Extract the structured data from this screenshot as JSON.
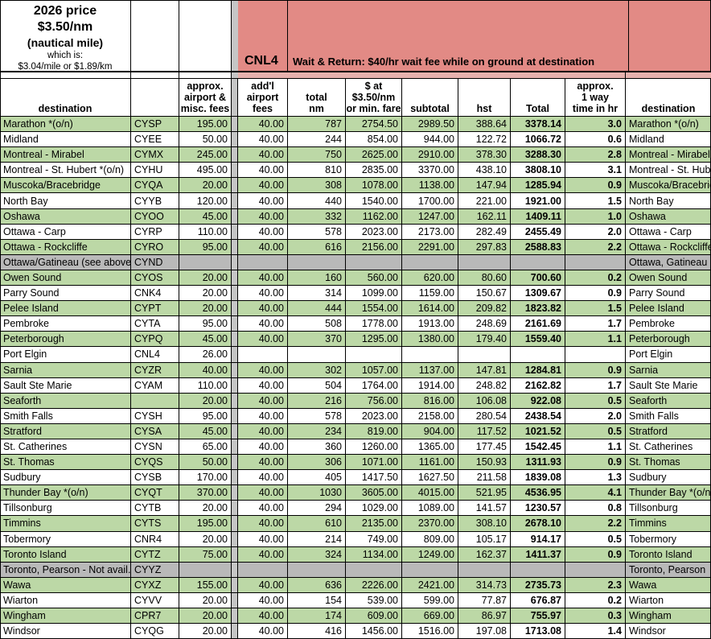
{
  "top": {
    "price_title": "2026 price",
    "price_rate": "$3.50/nm",
    "price_unit": "(nautical mile)",
    "which_is": "which is:",
    "conversion": "$3.04/mile or $1.89/km",
    "cnl4_code": "CNL4",
    "wait_note": "Wait & Return: $40/hr wait fee while on ground at destination"
  },
  "colors": {
    "row_green": "#bcd8a6",
    "row_gray": "#b9b9b9",
    "banner_pink": "#e28a85",
    "separator_gray": "#c6c6c6",
    "spacer_pink": "#e7b2ae"
  },
  "header": {
    "destination": "destination",
    "code": "",
    "fees": "approx.\nairport &\nmisc. fees",
    "addl": "add'l\nairport\nfees",
    "nm": "total\nnm",
    "fare": "$ at\n$3.50/nm\nor min. fare",
    "subtotal": "subtotal",
    "hst": "hst",
    "total": "Total",
    "time": "approx.\n1 way\ntime in hr",
    "destination_right": "destination"
  },
  "table": {
    "rows": [
      {
        "dest": "Marathon *(o/n)",
        "code": "CYSP",
        "fees": "195.00",
        "addl": "40.00",
        "nm": "787",
        "fare": "2754.50",
        "subtotal": "2989.50",
        "hst": "388.64",
        "total": "3378.14",
        "time": "3.0",
        "dest2": "Marathon *(o/n)",
        "shade": "green"
      },
      {
        "dest": "Midland",
        "code": "CYEE",
        "fees": "50.00",
        "addl": "40.00",
        "nm": "244",
        "fare": "854.00",
        "subtotal": "944.00",
        "hst": "122.72",
        "total": "1066.72",
        "time": "0.6",
        "dest2": "Midland",
        "shade": "white"
      },
      {
        "dest": "Montreal - Mirabel",
        "code": "CYMX",
        "fees": "245.00",
        "addl": "40.00",
        "nm": "750",
        "fare": "2625.00",
        "subtotal": "2910.00",
        "hst": "378.30",
        "total": "3288.30",
        "time": "2.8",
        "dest2": "Montreal - Mirabel",
        "shade": "green"
      },
      {
        "dest": "Montreal - St. Hubert *(o/n)",
        "code": "CYHU",
        "fees": "495.00",
        "addl": "40.00",
        "nm": "810",
        "fare": "2835.00",
        "subtotal": "3370.00",
        "hst": "438.10",
        "total": "3808.10",
        "time": "3.1",
        "dest2": "Montreal - St. Hubert *(o/n)",
        "shade": "white"
      },
      {
        "dest": "Muscoka/Bracebridge",
        "code": "CYQA",
        "fees": "20.00",
        "addl": "40.00",
        "nm": "308",
        "fare": "1078.00",
        "subtotal": "1138.00",
        "hst": "147.94",
        "total": "1285.94",
        "time": "0.9",
        "dest2": "Muscoka/Bracebridge",
        "shade": "green"
      },
      {
        "dest": "North Bay",
        "code": "CYYB",
        "fees": "120.00",
        "addl": "40.00",
        "nm": "440",
        "fare": "1540.00",
        "subtotal": "1700.00",
        "hst": "221.00",
        "total": "1921.00",
        "time": "1.5",
        "dest2": "North Bay",
        "shade": "white"
      },
      {
        "dest": "Oshawa",
        "code": "CYOO",
        "fees": "45.00",
        "addl": "40.00",
        "nm": "332",
        "fare": "1162.00",
        "subtotal": "1247.00",
        "hst": "162.11",
        "total": "1409.11",
        "time": "1.0",
        "dest2": "Oshawa",
        "shade": "green"
      },
      {
        "dest": "Ottawa - Carp",
        "code": "CYRP",
        "fees": "110.00",
        "addl": "40.00",
        "nm": "578",
        "fare": "2023.00",
        "subtotal": "2173.00",
        "hst": "282.49",
        "total": "2455.49",
        "time": "2.0",
        "dest2": "Ottawa - Carp",
        "shade": "white"
      },
      {
        "dest": "Ottawa - Rockcliffe",
        "code": "CYRO",
        "fees": "95.00",
        "addl": "40.00",
        "nm": "616",
        "fare": "2156.00",
        "subtotal": "2291.00",
        "hst": "297.83",
        "total": "2588.83",
        "time": "2.2",
        "dest2": "Ottawa - Rockcliffe",
        "shade": "green"
      },
      {
        "dest": "Ottawa/Gatineau (see above)",
        "code": "CYND",
        "fees": "",
        "addl": "",
        "nm": "",
        "fare": "",
        "subtotal": "",
        "hst": "",
        "total": "",
        "time": "",
        "dest2": "Ottawa, Gatineau",
        "shade": "gray"
      },
      {
        "dest": "Owen Sound",
        "code": "CYOS",
        "fees": "20.00",
        "addl": "40.00",
        "nm": "160",
        "fare": "560.00",
        "subtotal": "620.00",
        "hst": "80.60",
        "total": "700.60",
        "time": "0.2",
        "dest2": "Owen Sound",
        "shade": "green"
      },
      {
        "dest": "Parry Sound",
        "code": "CNK4",
        "fees": "20.00",
        "addl": "40.00",
        "nm": "314",
        "fare": "1099.00",
        "subtotal": "1159.00",
        "hst": "150.67",
        "total": "1309.67",
        "time": "0.9",
        "dest2": "Parry Sound",
        "shade": "white"
      },
      {
        "dest": "Pelee Island",
        "code": "CYPT",
        "fees": "20.00",
        "addl": "40.00",
        "nm": "444",
        "fare": "1554.00",
        "subtotal": "1614.00",
        "hst": "209.82",
        "total": "1823.82",
        "time": "1.5",
        "dest2": "Pelee Island",
        "shade": "green"
      },
      {
        "dest": "Pembroke",
        "code": "CYTA",
        "fees": "95.00",
        "addl": "40.00",
        "nm": "508",
        "fare": "1778.00",
        "subtotal": "1913.00",
        "hst": "248.69",
        "total": "2161.69",
        "time": "1.7",
        "dest2": "Pembroke",
        "shade": "white"
      },
      {
        "dest": "Peterborough",
        "code": "CYPQ",
        "fees": "45.00",
        "addl": "40.00",
        "nm": "370",
        "fare": "1295.00",
        "subtotal": "1380.00",
        "hst": "179.40",
        "total": "1559.40",
        "time": "1.1",
        "dest2": "Peterborough",
        "shade": "green"
      },
      {
        "dest": "Port Elgin",
        "code": "CNL4",
        "fees": "26.00",
        "addl": "",
        "nm": "",
        "fare": "",
        "subtotal": "",
        "hst": "",
        "total": "",
        "time": "",
        "dest2": "Port Elgin",
        "shade": "white"
      },
      {
        "dest": "Sarnia",
        "code": "CYZR",
        "fees": "40.00",
        "addl": "40.00",
        "nm": "302",
        "fare": "1057.00",
        "subtotal": "1137.00",
        "hst": "147.81",
        "total": "1284.81",
        "time": "0.9",
        "dest2": "Sarnia",
        "shade": "green"
      },
      {
        "dest": "Sault Ste Marie",
        "code": "CYAM",
        "fees": "110.00",
        "addl": "40.00",
        "nm": "504",
        "fare": "1764.00",
        "subtotal": "1914.00",
        "hst": "248.82",
        "total": "2162.82",
        "time": "1.7",
        "dest2": "Sault Ste Marie",
        "shade": "white"
      },
      {
        "dest": "Seaforth",
        "code": "",
        "fees": "20.00",
        "addl": "40.00",
        "nm": "216",
        "fare": "756.00",
        "subtotal": "816.00",
        "hst": "106.08",
        "total": "922.08",
        "time": "0.5",
        "dest2": "Seaforth",
        "shade": "green"
      },
      {
        "dest": "Smith Falls",
        "code": "CYSH",
        "fees": "95.00",
        "addl": "40.00",
        "nm": "578",
        "fare": "2023.00",
        "subtotal": "2158.00",
        "hst": "280.54",
        "total": "2438.54",
        "time": "2.0",
        "dest2": "Smith Falls",
        "shade": "white"
      },
      {
        "dest": "Stratford",
        "code": "CYSA",
        "fees": "45.00",
        "addl": "40.00",
        "nm": "234",
        "fare": "819.00",
        "subtotal": "904.00",
        "hst": "117.52",
        "total": "1021.52",
        "time": "0.5",
        "dest2": "Stratford",
        "shade": "green"
      },
      {
        "dest": "St. Catherines",
        "code": "CYSN",
        "fees": "65.00",
        "addl": "40.00",
        "nm": "360",
        "fare": "1260.00",
        "subtotal": "1365.00",
        "hst": "177.45",
        "total": "1542.45",
        "time": "1.1",
        "dest2": "St. Catherines",
        "shade": "white"
      },
      {
        "dest": "St. Thomas",
        "code": "CYQS",
        "fees": "50.00",
        "addl": "40.00",
        "nm": "306",
        "fare": "1071.00",
        "subtotal": "1161.00",
        "hst": "150.93",
        "total": "1311.93",
        "time": "0.9",
        "dest2": "St. Thomas",
        "shade": "green"
      },
      {
        "dest": "Sudbury",
        "code": "CYSB",
        "fees": "170.00",
        "addl": "40.00",
        "nm": "405",
        "fare": "1417.50",
        "subtotal": "1627.50",
        "hst": "211.58",
        "total": "1839.08",
        "time": "1.3",
        "dest2": "Sudbury",
        "shade": "white"
      },
      {
        "dest": "Thunder Bay *(o/n)",
        "code": "CYQT",
        "fees": "370.00",
        "addl": "40.00",
        "nm": "1030",
        "fare": "3605.00",
        "subtotal": "4015.00",
        "hst": "521.95",
        "total": "4536.95",
        "time": "4.1",
        "dest2": "Thunder Bay *(o/n)",
        "shade": "green"
      },
      {
        "dest": "Tillsonburg",
        "code": "CYTB",
        "fees": "20.00",
        "addl": "40.00",
        "nm": "294",
        "fare": "1029.00",
        "subtotal": "1089.00",
        "hst": "141.57",
        "total": "1230.57",
        "time": "0.8",
        "dest2": "Tillsonburg",
        "shade": "white"
      },
      {
        "dest": "Timmins",
        "code": "CYTS",
        "fees": "195.00",
        "addl": "40.00",
        "nm": "610",
        "fare": "2135.00",
        "subtotal": "2370.00",
        "hst": "308.10",
        "total": "2678.10",
        "time": "2.2",
        "dest2": "Timmins",
        "shade": "green"
      },
      {
        "dest": "Tobermory",
        "code": "CNR4",
        "fees": "20.00",
        "addl": "40.00",
        "nm": "214",
        "fare": "749.00",
        "subtotal": "809.00",
        "hst": "105.17",
        "total": "914.17",
        "time": "0.5",
        "dest2": "Tobermory",
        "shade": "white"
      },
      {
        "dest": "Toronto Island",
        "code": "CYTZ",
        "fees": "75.00",
        "addl": "40.00",
        "nm": "324",
        "fare": "1134.00",
        "subtotal": "1249.00",
        "hst": "162.37",
        "total": "1411.37",
        "time": "0.9",
        "dest2": "Toronto Island",
        "shade": "green"
      },
      {
        "dest": "Toronto, Pearson - Not avail.",
        "code": "CYYZ",
        "fees": "",
        "addl": "",
        "nm": "",
        "fare": "",
        "subtotal": "",
        "hst": "",
        "total": "",
        "time": "",
        "dest2": "Toronto, Pearson",
        "shade": "gray"
      },
      {
        "dest": "Wawa",
        "code": "CYXZ",
        "fees": "155.00",
        "addl": "40.00",
        "nm": "636",
        "fare": "2226.00",
        "subtotal": "2421.00",
        "hst": "314.73",
        "total": "2735.73",
        "time": "2.3",
        "dest2": "Wawa",
        "shade": "green"
      },
      {
        "dest": "Wiarton",
        "code": "CYVV",
        "fees": "20.00",
        "addl": "40.00",
        "nm": "154",
        "fare": "539.00",
        "subtotal": "599.00",
        "hst": "77.87",
        "total": "676.87",
        "time": "0.2",
        "dest2": "Wiarton",
        "shade": "white"
      },
      {
        "dest": "Wingham",
        "code": "CPR7",
        "fees": "20.00",
        "addl": "40.00",
        "nm": "174",
        "fare": "609.00",
        "subtotal": "669.00",
        "hst": "86.97",
        "total": "755.97",
        "time": "0.3",
        "dest2": "Wingham",
        "shade": "green"
      },
      {
        "dest": "Windsor",
        "code": "CYQG",
        "fees": "20.00",
        "addl": "40.00",
        "nm": "416",
        "fare": "1456.00",
        "subtotal": "1516.00",
        "hst": "197.08",
        "total": "1713.08",
        "time": "1.4",
        "dest2": "Windsor",
        "shade": "white"
      }
    ]
  }
}
